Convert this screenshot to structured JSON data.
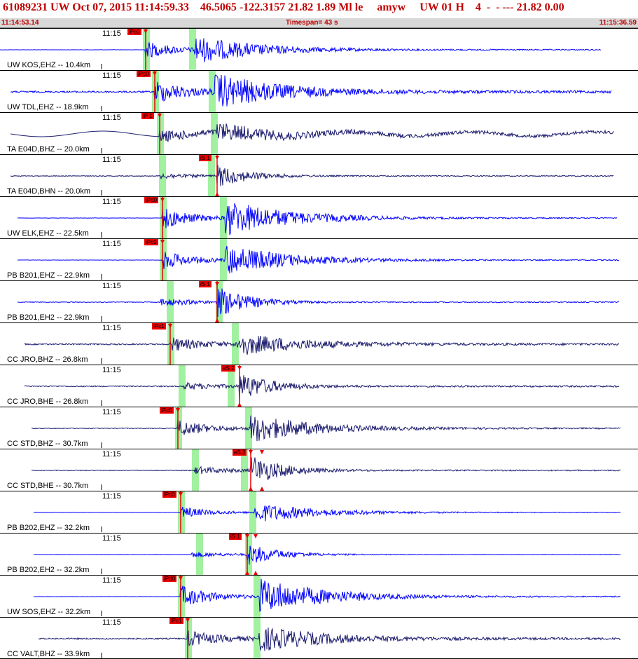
{
  "header": {
    "title": "61089231 UW Oct 07, 2015 11:14:59.33    46.5065 -122.3157 21.82 1.89 Ml le     amyw     UW 01 H    4  -  - --- 21.82 0.00",
    "start_time": "11:14:53.14",
    "timespan": "Timespan=  43 s",
    "end_time": "11:15:36.59"
  },
  "colors": {
    "header_text": "#c00000",
    "trace_blue": "#0000ff",
    "trace_navy": "#1a1a6e",
    "pick_box": "#ee0000",
    "window_band": "#90ee90"
  },
  "traces": [
    {
      "time": "11:15",
      "label": "UW KOS,EHZ -- 10.4km",
      "pick": "iPc0",
      "color": "blue"
    },
    {
      "time": "11:15",
      "label": "UW TDL,EHZ -- 18.9km",
      "pick": "iPc0",
      "color": "blue"
    },
    {
      "time": "11:15",
      "label": "TA E04D,BHZ -- 20.0km",
      "pick": "iP 1",
      "color": "navy"
    },
    {
      "time": "11:15",
      "label": "TA E04D,BHN -- 20.0km",
      "pick": "iS 1",
      "color": "navy"
    },
    {
      "time": "11:15",
      "label": "UW ELK,EHZ -- 22.5km",
      "pick": "iPd0",
      "color": "blue"
    },
    {
      "time": "11:15",
      "label": "PB B201,EHZ -- 22.9km",
      "pick": "iPc0",
      "color": "blue"
    },
    {
      "time": "11:15",
      "label": "PB B201,EH2 -- 22.9km",
      "pick": "iS 1",
      "color": "blue"
    },
    {
      "time": "11:15",
      "label": "CC JRO,BHZ -- 26.8km",
      "pick": "iPc1",
      "color": "navy"
    },
    {
      "time": "11:15",
      "label": "CC JRO,BHE -- 26.8km",
      "pick": "eS 2",
      "color": "navy"
    },
    {
      "time": "11:15",
      "label": "CC STD,BHZ -- 30.7km",
      "pick": "iPc0",
      "color": "navy"
    },
    {
      "time": "11:15",
      "label": "CC STD,BHE -- 30.7km",
      "pick": "eS 2",
      "color": "navy"
    },
    {
      "time": "11:15",
      "label": "PB B202,EHZ -- 32.2km",
      "pick": "iPc0",
      "color": "blue"
    },
    {
      "time": "11:15",
      "label": "PB B202,EH2 -- 32.2km",
      "pick": "iS 1",
      "color": "blue"
    },
    {
      "time": "11:15",
      "label": "UW SOS,EHZ -- 32.2km",
      "pick": "iPd0",
      "color": "blue"
    },
    {
      "time": "11:15",
      "label": "CC VALT,BHZ -- 33.9km",
      "pick": "iPc1",
      "color": "navy"
    }
  ]
}
